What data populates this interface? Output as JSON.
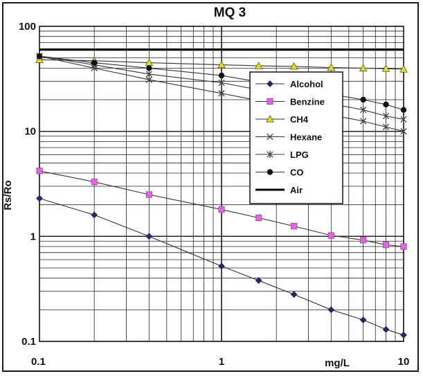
{
  "chart_data": {
    "type": "line",
    "title": "MQ 3",
    "xlabel": "mg/L",
    "ylabel": "Rs/Ro",
    "x_scale": "log",
    "y_scale": "log",
    "xlim": [
      0.1,
      10
    ],
    "ylim": [
      0.1,
      100
    ],
    "x_ticks": [
      {
        "value": 0.1,
        "label": "0.1"
      },
      {
        "value": 1,
        "label": "1"
      },
      {
        "value": 10,
        "label": "10"
      }
    ],
    "y_ticks": [
      {
        "value": 0.1,
        "label": "0.1"
      },
      {
        "value": 1,
        "label": "1"
      },
      {
        "value": 10,
        "label": "10"
      },
      {
        "value": 100,
        "label": "100"
      }
    ],
    "grid": true,
    "legend_position": "right",
    "series": [
      {
        "name": "Alcohol",
        "color": "#1f2a6b",
        "marker": "diamond",
        "x": [
          0.1,
          0.2,
          0.4,
          1,
          1.6,
          2.5,
          4,
          6,
          8,
          10
        ],
        "y": [
          2.3,
          1.6,
          1.0,
          0.52,
          0.38,
          0.28,
          0.2,
          0.16,
          0.13,
          0.115
        ]
      },
      {
        "name": "Benzine",
        "color": "#e066e0",
        "marker": "square",
        "x": [
          0.1,
          0.2,
          0.4,
          1,
          1.6,
          2.5,
          4,
          6,
          8,
          10
        ],
        "y": [
          4.2,
          3.3,
          2.5,
          1.8,
          1.5,
          1.25,
          1.02,
          0.92,
          0.83,
          0.8
        ]
      },
      {
        "name": "CH4",
        "color": "#e8e000",
        "marker": "triangle",
        "x": [
          0.1,
          0.2,
          0.4,
          1,
          1.6,
          2.5,
          4,
          6,
          8,
          10
        ],
        "y": [
          48,
          47,
          45,
          43,
          42,
          41.5,
          40.5,
          40,
          39.5,
          39
        ]
      },
      {
        "name": "Hexane",
        "color": "#444444",
        "marker": "x",
        "x": [
          0.1,
          0.2,
          0.4,
          1,
          6,
          8,
          10
        ],
        "y": [
          52,
          40,
          31,
          23,
          12.5,
          11,
          10
        ]
      },
      {
        "name": "LPG",
        "color": "#444444",
        "marker": "star",
        "x": [
          0.1,
          0.2,
          0.4,
          1,
          6,
          8,
          10
        ],
        "y": [
          52,
          43,
          35,
          29,
          16,
          14,
          13
        ]
      },
      {
        "name": "CO",
        "color": "#111111",
        "marker": "circle",
        "x": [
          0.1,
          0.2,
          0.4,
          1,
          6,
          8,
          10
        ],
        "y": [
          52,
          45,
          40,
          34,
          20,
          18,
          16
        ]
      },
      {
        "name": "Air",
        "color": "#111111",
        "marker": "none",
        "x": [
          0.1,
          10
        ],
        "y": [
          60,
          60
        ]
      }
    ]
  }
}
